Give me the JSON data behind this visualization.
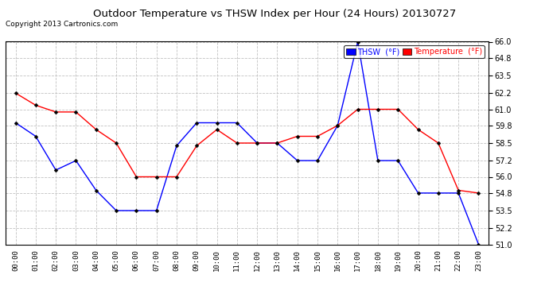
{
  "title": "Outdoor Temperature vs THSW Index per Hour (24 Hours) 20130727",
  "copyright": "Copyright 2013 Cartronics.com",
  "hours": [
    "00:00",
    "01:00",
    "02:00",
    "03:00",
    "04:00",
    "05:00",
    "06:00",
    "07:00",
    "08:00",
    "09:00",
    "10:00",
    "11:00",
    "12:00",
    "13:00",
    "14:00",
    "15:00",
    "16:00",
    "17:00",
    "18:00",
    "19:00",
    "20:00",
    "21:00",
    "22:00",
    "23:00"
  ],
  "thsw": [
    60.0,
    59.0,
    56.5,
    57.2,
    55.0,
    53.5,
    53.5,
    53.5,
    58.3,
    60.0,
    60.0,
    60.0,
    58.5,
    58.5,
    57.2,
    57.2,
    59.8,
    66.0,
    57.2,
    57.2,
    54.8,
    54.8,
    54.8,
    51.0
  ],
  "temperature": [
    62.2,
    61.3,
    60.8,
    60.8,
    59.5,
    58.5,
    56.0,
    56.0,
    56.0,
    58.3,
    59.5,
    58.5,
    58.5,
    58.5,
    59.0,
    59.0,
    59.8,
    61.0,
    61.0,
    61.0,
    59.5,
    58.5,
    55.0,
    54.8
  ],
  "ylim_min": 51.0,
  "ylim_max": 66.0,
  "yticks": [
    51.0,
    52.2,
    53.5,
    54.8,
    56.0,
    57.2,
    58.5,
    59.8,
    61.0,
    62.2,
    63.5,
    64.8,
    66.0
  ],
  "thsw_color": "#0000ff",
  "temp_color": "#ff0000",
  "background_color": "#ffffff",
  "plot_bg_color": "#ffffff",
  "grid_color": "#bbbbbb",
  "legend_thsw_bg": "#0000ff",
  "legend_temp_bg": "#ff0000",
  "legend_thsw_label": "THSW  (°F)",
  "legend_temp_label": "Temperature  (°F)"
}
